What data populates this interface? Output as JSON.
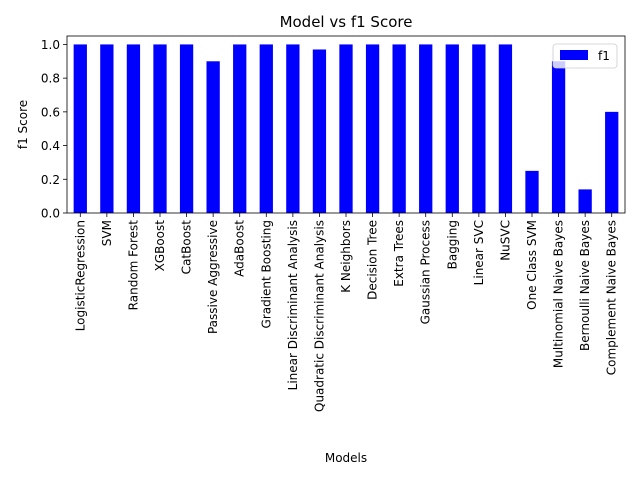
{
  "chart_data": {
    "type": "bar",
    "title": "Model vs f1 Score",
    "xlabel": "Models",
    "ylabel": "f1 Score",
    "ylim": [
      0,
      1.05
    ],
    "yticks": [
      0.0,
      0.2,
      0.4,
      0.6,
      0.8,
      1.0
    ],
    "ytick_labels": [
      "0.0",
      "0.2",
      "0.4",
      "0.6",
      "0.8",
      "1.0"
    ],
    "grid": false,
    "legend": "top-right",
    "categories": [
      "LogisticRegression",
      "SVM",
      "Random Forest",
      "XGBoost",
      "CatBoost",
      "Passive Aggressive",
      "AdaBoost",
      "Gradient Boosting",
      "Linear Discriminant Analysis",
      "Quadratic Discriminant Analysis",
      "K Neighbors",
      "Decision Tree",
      "Extra Trees",
      "Gaussian Process",
      "Bagging",
      "Linear SVC",
      "NuSVC",
      "One Class SVM",
      "Multinomial Naive Bayes",
      "Bernoulli Naive Bayes",
      "Complement Naive Bayes"
    ],
    "series": [
      {
        "name": "f1",
        "color": "#0000ff",
        "values": [
          1.0,
          1.0,
          1.0,
          1.0,
          1.0,
          0.9,
          1.0,
          1.0,
          1.0,
          0.97,
          1.0,
          1.0,
          1.0,
          1.0,
          1.0,
          1.0,
          1.0,
          0.25,
          0.9,
          0.14,
          0.6
        ]
      }
    ]
  }
}
